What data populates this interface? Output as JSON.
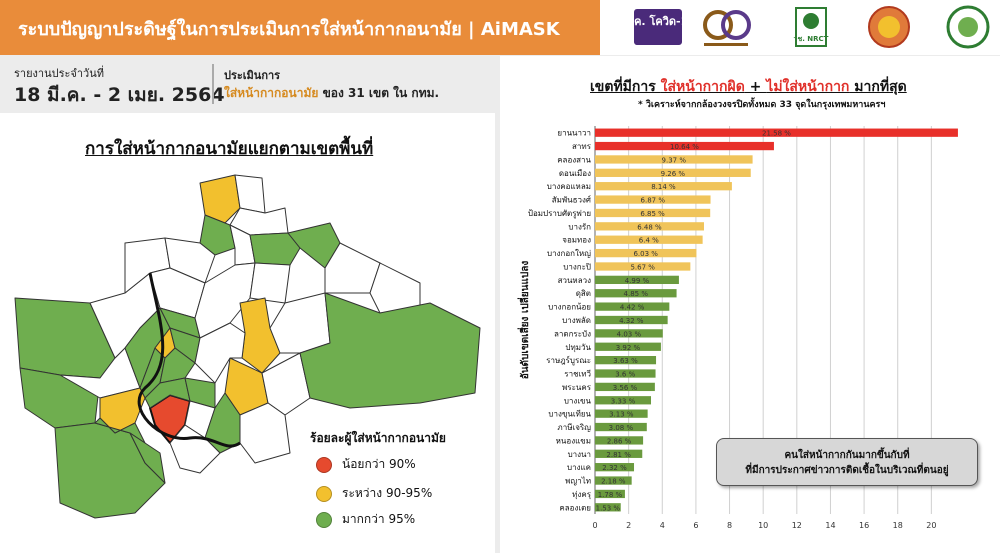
{
  "header": {
    "title": "ระบบปัญญาประดิษฐ์ในการประเมินการใส่หน้ากากอนามัย | AiMASK",
    "logos": [
      {
        "text": "ศบค. โควิด-19",
        "color": "#4a2a7a"
      },
      {
        "text": "๖๐",
        "color": "#8a5a1a"
      },
      {
        "text": "วช. NRCT",
        "color": "#2e7d32"
      },
      {
        "text": "",
        "color": "#c0392b"
      },
      {
        "text": "",
        "color": "#2e7d32"
      }
    ]
  },
  "report": {
    "label": "รายงานประจำวันที่",
    "date": "18 มี.ค. - 2 เมย. 2564",
    "eval_label": "ประเมินการ",
    "eval_highlight": "ใส่หน้ากากอนามัย",
    "eval_rest": " ของ 31 เขต ใน กทม."
  },
  "map": {
    "title": "การใส่หน้ากากอนามัยแยกตามเขตพื้นที่",
    "legend_title": "ร้อยละผู้ใส่หน้ากากอนามัย",
    "legend": [
      {
        "label": "น้อยกว่า 90%",
        "color": "#e64a2e"
      },
      {
        "label": "ระหว่าง 90-95%",
        "color": "#f2c02e"
      },
      {
        "label": "มากกว่า 95%",
        "color": "#6fae4f"
      }
    ],
    "colors": {
      "red": "#e64a2e",
      "yellow": "#f2c02e",
      "green": "#6fae4f",
      "white": "#ffffff"
    }
  },
  "chart_data": {
    "type": "bar",
    "orientation": "horizontal",
    "title_parts": [
      "เขตที่มีการ ",
      "ใส่หน้ากากผิด",
      " + ",
      "ไม่ใส่หน้ากาก",
      " มากที่สุด"
    ],
    "subtitle": "* วิเคราะห์จากกล้องวงจรปิดทั้งหมด 33 จุดในกรุงเทพมหานครฯ",
    "ylabel": "อันดับเขตเสี่ยง เปลี่ยนแปลง",
    "xlim": [
      0,
      22
    ],
    "xticks": [
      0,
      2,
      4,
      6,
      8,
      10,
      12,
      14,
      16,
      18,
      20
    ],
    "grid": true,
    "categories": [
      "ยานนาวา",
      "สาทร",
      "คลองสาน",
      "ดอนเมือง",
      "บางคอแหลม",
      "สัมพันธวงศ์",
      "ป้อมปราบศัตรูพ่าย",
      "บางรัก",
      "จอมทอง",
      "บางกอกใหญ่",
      "บางกะปิ",
      "สวนหลวง",
      "ดุสิต",
      "บางกอกน้อย",
      "บางพลัด",
      "ลาดกระบัง",
      "ปทุมวัน",
      "ราษฎร์บูรณะ",
      "ราชเทวี",
      "พระนคร",
      "บางเขน",
      "บางขุนเทียน",
      "ภาษีเจริญ",
      "หนองแขม",
      "บางนา",
      "บางแค",
      "พญาไท",
      "ทุ่งครุ",
      "คลองเตย"
    ],
    "values": [
      21.58,
      10.64,
      9.37,
      9.26,
      8.14,
      6.87,
      6.85,
      6.48,
      6.4,
      6.03,
      5.67,
      4.99,
      4.85,
      4.42,
      4.32,
      4.03,
      3.92,
      3.63,
      3.6,
      3.56,
      3.33,
      3.13,
      3.08,
      2.86,
      2.81,
      2.32,
      2.18,
      1.78,
      1.53
    ],
    "value_labels": [
      "21.58 %",
      "10.64 %",
      "9.37 %",
      "9.26 %",
      "8.14 %",
      "6.87 %",
      "6.85 %",
      "6.48 %",
      "6.4 %",
      "6.03 %",
      "5.67 %",
      "4.99 %",
      "4.85 %",
      "4.42 %",
      "4.32 %",
      "4.03 %",
      "3.92 %",
      "3.63 %",
      "3.6 %",
      "3.56 %",
      "3.33 %",
      "3.13 %",
      "3.08 %",
      "2.86 %",
      "2.81 %",
      "2.32 %",
      "2.18 %",
      "1.78 %",
      "1.53 %"
    ],
    "bar_colors": [
      "#e8302a",
      "#e8302a",
      "#f0c45a",
      "#f0c45a",
      "#f0c45a",
      "#f0c45a",
      "#f0c45a",
      "#f0c45a",
      "#f0c45a",
      "#f0c45a",
      "#f0c45a",
      "#6a9a3e",
      "#6a9a3e",
      "#6a9a3e",
      "#6a9a3e",
      "#6a9a3e",
      "#6a9a3e",
      "#6a9a3e",
      "#6a9a3e",
      "#6a9a3e",
      "#6a9a3e",
      "#6a9a3e",
      "#6a9a3e",
      "#6a9a3e",
      "#6a9a3e",
      "#6a9a3e",
      "#6a9a3e",
      "#6a9a3e",
      "#6a9a3e"
    ],
    "callout": [
      "คนใส่หน้ากากกันมากขึ้นกับที่",
      "ที่มีการประกาศข่าวการติดเชื้อในบริเวณที่ตนอยู่"
    ]
  }
}
